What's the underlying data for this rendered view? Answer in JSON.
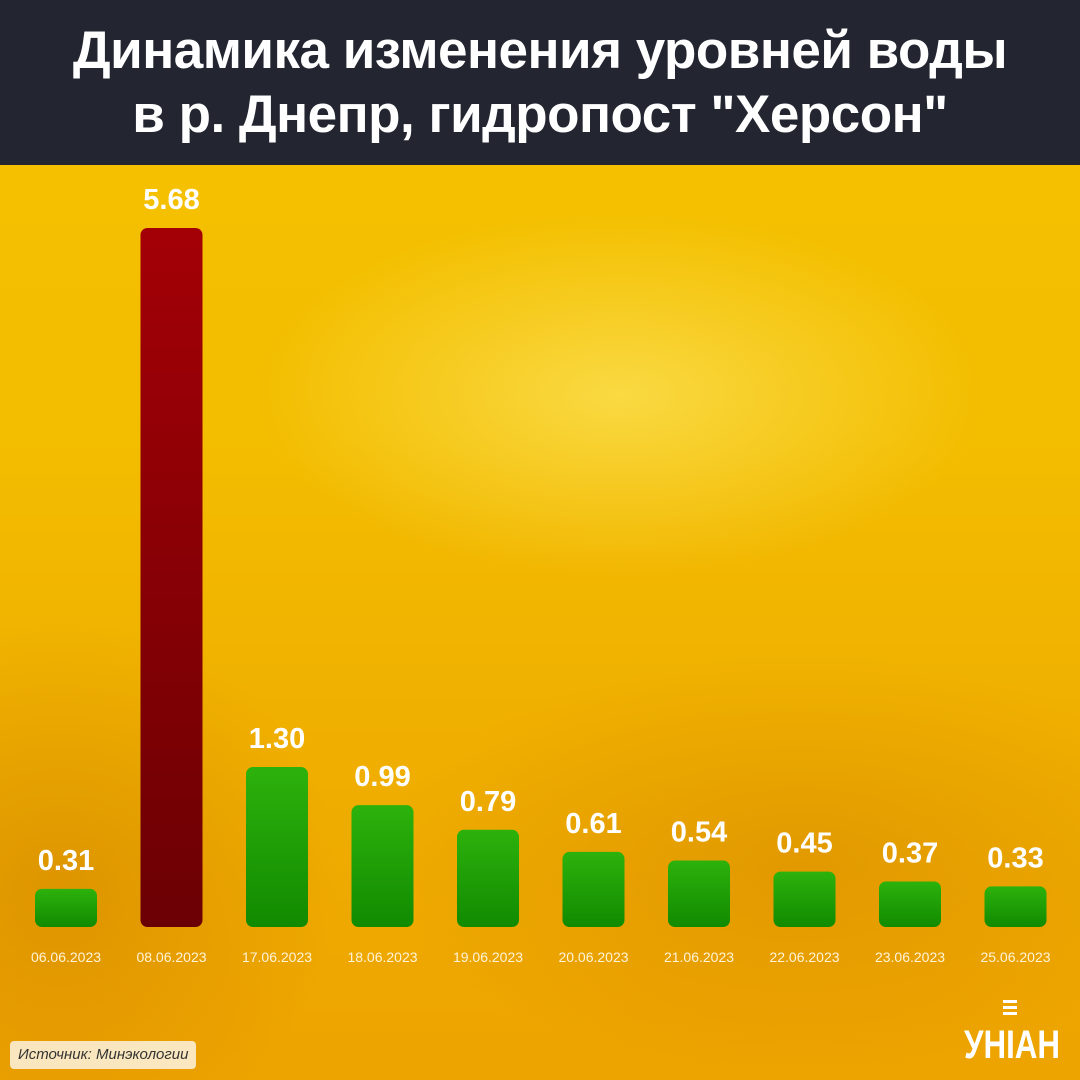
{
  "header": {
    "title_line1": "Динамика изменения уровней воды",
    "title_line2": "в р. Днепр, гидропост \"Херсон\""
  },
  "chart_data": {
    "type": "bar",
    "categories": [
      "06.06.2023",
      "08.06.2023",
      "17.06.2023",
      "18.06.2023",
      "19.06.2023",
      "20.06.2023",
      "21.06.2023",
      "22.06.2023",
      "23.06.2023",
      "25.06.2023"
    ],
    "values": [
      0.31,
      5.68,
      1.3,
      0.99,
      0.79,
      0.61,
      0.54,
      0.45,
      0.37,
      0.33
    ],
    "value_labels": [
      "0.31",
      "5.68",
      "1.30",
      "0.99",
      "0.79",
      "0.61",
      "0.54",
      "0.45",
      "0.37",
      "0.33"
    ],
    "highlight_index": 1,
    "colors": {
      "normal": "#2db20c",
      "normal_dark": "#118a00",
      "highlight": "#a30006",
      "highlight_dark": "#6b0004"
    },
    "ylim": [
      0,
      5.68
    ],
    "grid": false,
    "legend": "none"
  },
  "footer": {
    "source": "Источник: Минэкологии",
    "logo_text": "УНІАН"
  }
}
